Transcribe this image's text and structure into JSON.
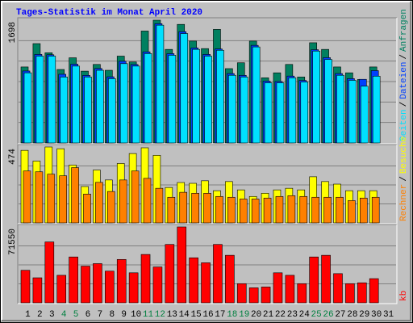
{
  "title": "Tages-Statistik im Monat April 2020",
  "separator": "/",
  "chart_data": [
    {
      "type": "bar",
      "ylim": [
        0,
        1698
      ],
      "yticks": [
        1698
      ],
      "grid": true,
      "series": [
        {
          "name": "Anfragen",
          "color": "#008060",
          "values": [
            1051,
            1374,
            1247,
            1016,
            1178,
            993,
            1086,
            1005,
            1201,
            1120,
            1548,
            1698,
            1294,
            1640,
            1409,
            1305,
            1571,
            1028,
            1109,
            1409,
            901,
            970,
            1086,
            912,
            1386,
            1294,
            1051,
            970,
            878,
            1051,
            null
          ]
        },
        {
          "name": "Dateien",
          "color": "#0040ff",
          "values": [
            995,
            1225,
            1220,
            950,
            1090,
            935,
            1030,
            915,
            1130,
            1085,
            1260,
            1650,
            1235,
            1540,
            1315,
            1225,
            1300,
            960,
            935,
            1350,
            855,
            850,
            925,
            865,
            1290,
            1180,
            960,
            890,
            880,
            1000,
            null
          ]
        },
        {
          "name": "Seiten",
          "color": "#00e0ff",
          "values": [
            970,
            1201,
            1201,
            912,
            1063,
            912,
            1005,
            889,
            1097,
            1063,
            1236,
            1629,
            1213,
            1513,
            1294,
            1201,
            1282,
            936,
            912,
            1328,
            832,
            832,
            901,
            843,
            1271,
            1155,
            936,
            866,
            785,
            924,
            null
          ]
        }
      ]
    },
    {
      "type": "bar",
      "ylim": [
        0,
        474
      ],
      "yticks": [
        474
      ],
      "grid": true,
      "series": [
        {
          "name": "Besuche",
          "color": "#ffff00",
          "values": [
            453,
            386,
            474,
            463,
            361,
            227,
            330,
            268,
            371,
            433,
            469,
            422,
            221,
            252,
            247,
            263,
            201,
            258,
            206,
            165,
            185,
            206,
            216,
            206,
            288,
            258,
            242,
            201,
            201,
            201,
            null
          ]
        },
        {
          "name": "Rechner",
          "color": "#ff8000",
          "values": [
            324,
            319,
            304,
            294,
            345,
            180,
            253,
            196,
            268,
            324,
            278,
            216,
            160,
            191,
            185,
            185,
            165,
            160,
            149,
            149,
            155,
            165,
            170,
            165,
            160,
            160,
            160,
            139,
            155,
            160,
            null
          ]
        }
      ]
    },
    {
      "type": "bar",
      "ylim": [
        0,
        71550
      ],
      "yticks": [
        71550
      ],
      "grid": true,
      "categories": [
        "1",
        "2",
        "3",
        "4",
        "5",
        "6",
        "7",
        "8",
        "9",
        "10",
        "11",
        "12",
        "13",
        "14",
        "15",
        "16",
        "17",
        "18",
        "19",
        "20",
        "21",
        "22",
        "23",
        "24",
        "25",
        "26",
        "27",
        "28",
        "29",
        "30",
        "31"
      ],
      "category_colors": [
        "#000000",
        "#000000",
        "#000000",
        "#008040",
        "#008040",
        "#000000",
        "#000000",
        "#000000",
        "#000000",
        "#000000",
        "#008040",
        "#008040",
        "#000000",
        "#000000",
        "#000000",
        "#000000",
        "#000000",
        "#008040",
        "#008040",
        "#000000",
        "#000000",
        "#000000",
        "#000000",
        "#000000",
        "#008040",
        "#008040",
        "#000000",
        "#000000",
        "#000000",
        "#000000",
        "#000000"
      ],
      "series": [
        {
          "name": "kb",
          "color": "#ff0000",
          "values": [
            30654,
            23580,
            57378,
            25938,
            43230,
            34584,
            36942,
            29868,
            40872,
            28296,
            45588,
            33798,
            55020,
            71550,
            42444,
            37728,
            55020,
            44802,
            18078,
            14148,
            14934,
            28296,
            25938,
            18078,
            43230,
            44802,
            27510,
            18078,
            18864,
            22794,
            null
          ]
        }
      ]
    }
  ]
}
